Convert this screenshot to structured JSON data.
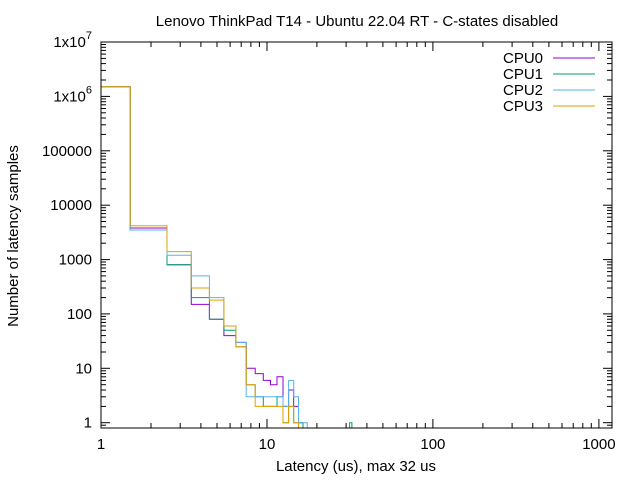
{
  "chart_data": {
    "type": "line",
    "title": "Lenovo ThinkPad T14 - Ubuntu 22.04 RT - C-states disabled",
    "xlabel": "Latency (us), max 32 us",
    "ylabel": "Number of latency samples",
    "x_scale": "log",
    "y_scale": "log",
    "xlim": [
      1,
      1200
    ],
    "ylim": [
      0.8,
      10000000
    ],
    "x_ticks": [
      {
        "value": 1,
        "label": "1"
      },
      {
        "value": 10,
        "label": "10"
      },
      {
        "value": 100,
        "label": "100"
      },
      {
        "value": 1000,
        "label": "1000"
      }
    ],
    "y_ticks": [
      {
        "value": 1,
        "label": "1"
      },
      {
        "value": 10,
        "label": "10"
      },
      {
        "value": 100,
        "label": "100"
      },
      {
        "value": 1000,
        "label": "1000"
      },
      {
        "value": 10000,
        "label": "10000"
      },
      {
        "value": 100000,
        "label": "100000"
      },
      {
        "value": 1000000,
        "label": "1x10",
        "sup": "6"
      },
      {
        "value": 10000000,
        "label": "1x10",
        "sup": "7"
      }
    ],
    "grid": false,
    "legend_position": "top-right",
    "series": [
      {
        "name": "CPU0",
        "color": "#9400d3",
        "x": [
          1,
          2,
          3,
          4,
          5,
          6,
          7,
          8,
          9,
          10,
          11,
          12,
          13,
          14,
          15,
          16
        ],
        "y": [
          1500000,
          3800,
          800,
          150,
          80,
          40,
          30,
          10,
          8,
          6,
          5,
          7,
          2,
          4,
          2,
          1
        ]
      },
      {
        "name": "CPU1",
        "color": "#009e73",
        "x": [
          1,
          2,
          3,
          4,
          5,
          6,
          7,
          8,
          9,
          10,
          11,
          12,
          13,
          14,
          15,
          16,
          32
        ],
        "y": [
          1500000,
          3500,
          800,
          200,
          80,
          50,
          25,
          5,
          3,
          2,
          2,
          3,
          1,
          2,
          1,
          1,
          1
        ]
      },
      {
        "name": "CPU2",
        "color": "#56b4e9",
        "x": [
          1,
          2,
          3,
          4,
          5,
          6,
          7,
          8,
          9,
          10,
          11,
          12,
          13,
          14,
          15,
          16,
          17
        ],
        "y": [
          1500000,
          3500,
          1200,
          500,
          200,
          60,
          30,
          3,
          3,
          3,
          3,
          3,
          2,
          6,
          3,
          1,
          1
        ]
      },
      {
        "name": "CPU3",
        "color": "#e69f00",
        "x": [
          1,
          2,
          3,
          4,
          5,
          6,
          7,
          8,
          9,
          10,
          11,
          12,
          13,
          14,
          15
        ],
        "y": [
          1500000,
          4200,
          1400,
          300,
          180,
          60,
          25,
          5,
          2,
          2,
          2,
          2,
          1,
          2,
          1
        ]
      }
    ]
  }
}
